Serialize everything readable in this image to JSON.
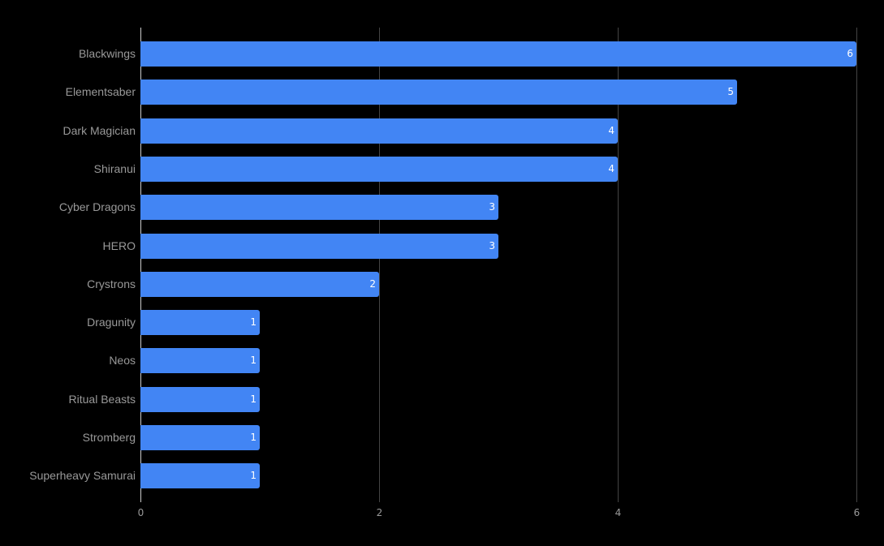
{
  "chart_data": {
    "type": "bar",
    "orientation": "horizontal",
    "title": "",
    "xlabel": "",
    "ylabel": "",
    "categories": [
      "Blackwings",
      "Elementsaber",
      "Dark Magician",
      "Shiranui",
      "Cyber Dragons",
      "HERO",
      "Crystrons",
      "Dragunity",
      "Neos",
      "Ritual Beasts",
      "Stromberg",
      "Superheavy Samurai"
    ],
    "values": [
      6,
      5,
      4,
      4,
      3,
      3,
      2,
      1,
      1,
      1,
      1,
      1
    ],
    "xlim": [
      0,
      6
    ],
    "x_ticks": [
      "0",
      "2",
      "4",
      "6"
    ],
    "grid": true,
    "data_labels": true,
    "bar_color": "#4285f4",
    "background": "#000000"
  }
}
